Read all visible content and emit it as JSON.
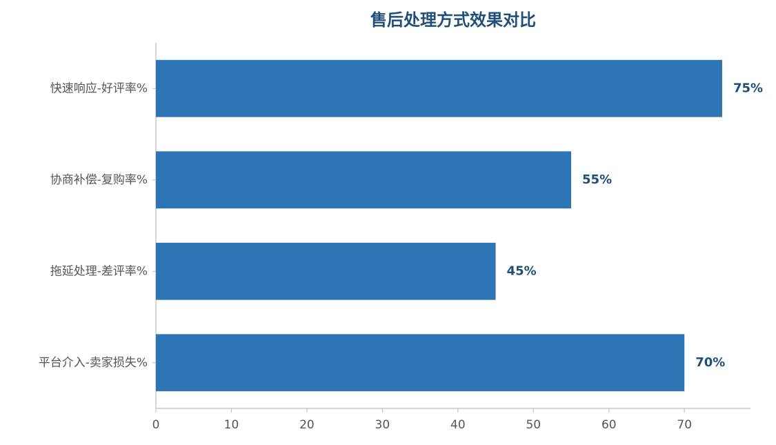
{
  "chart_data": {
    "type": "barh",
    "title": "售后处理方式效果对比",
    "categories": [
      "快速响应-好评率%",
      "协商补偿-复购率%",
      "拖延处理-差评率%",
      "平台介入-卖家损失%"
    ],
    "values": [
      75,
      55,
      45,
      70
    ],
    "value_labels": [
      "75%",
      "55%",
      "45%",
      "70%"
    ],
    "color": "#2e75b6",
    "xlim": [
      0,
      78.75
    ],
    "xticks": [
      0,
      10,
      20,
      30,
      40,
      50,
      60,
      70
    ],
    "grid": false
  }
}
